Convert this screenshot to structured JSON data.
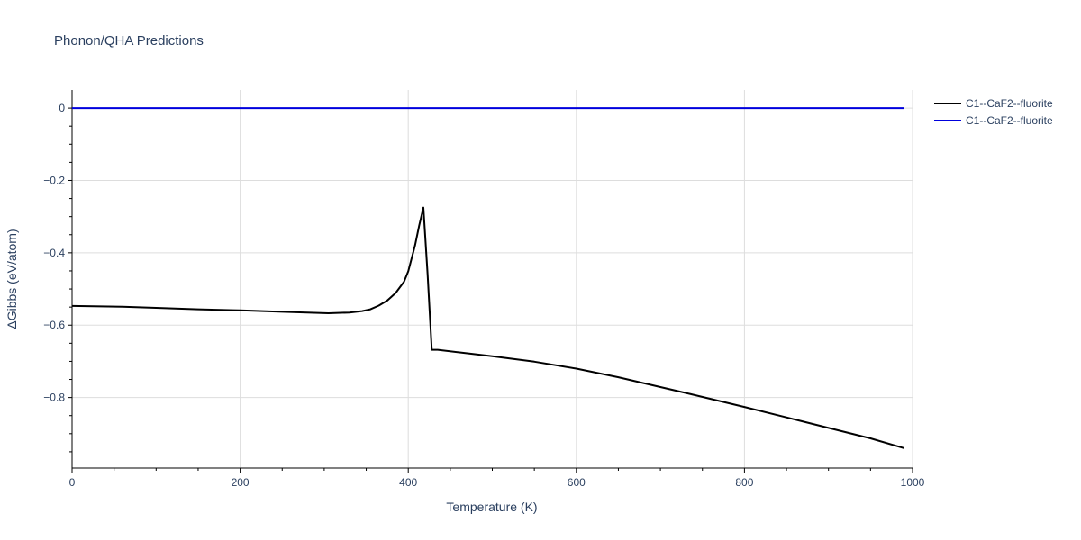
{
  "chart_data": {
    "type": "line",
    "title": "Phonon/QHA Predictions",
    "xlabel": "Temperature (K)",
    "ylabel": "ΔGibbs (eV/atom)",
    "xlim": [
      0,
      1000
    ],
    "ylim": [
      -0.995,
      0.05
    ],
    "x_ticks": [
      0,
      200,
      400,
      600,
      800,
      1000
    ],
    "x_tick_labels": [
      "0",
      "200",
      "400",
      "600",
      "800",
      "1000"
    ],
    "y_ticks": [
      0,
      -0.2,
      -0.4,
      -0.6,
      -0.8
    ],
    "y_tick_labels": [
      "0",
      "−0.2",
      "−0.4",
      "−0.6",
      "−0.8"
    ],
    "grid": true,
    "legend_position": "top-right",
    "series": [
      {
        "name": "C1--CaF2--fluorite",
        "color": "#000000",
        "x": [
          0,
          60,
          100,
          150,
          200,
          250,
          305,
          330,
          345,
          355,
          365,
          375,
          385,
          395,
          400,
          408,
          413,
          418,
          423,
          428,
          435,
          460,
          500,
          550,
          600,
          650,
          700,
          735,
          800,
          850,
          900,
          950,
          990
        ],
        "y": [
          -0.547,
          -0.549,
          -0.552,
          -0.556,
          -0.559,
          -0.563,
          -0.567,
          -0.565,
          -0.561,
          -0.556,
          -0.546,
          -0.532,
          -0.511,
          -0.48,
          -0.451,
          -0.38,
          -0.325,
          -0.275,
          -0.46,
          -0.668,
          -0.668,
          -0.675,
          -0.686,
          -0.701,
          -0.72,
          -0.744,
          -0.771,
          -0.79,
          -0.826,
          -0.855,
          -0.884,
          -0.913,
          -0.94
        ]
      },
      {
        "name": "C1--CaF2--fluorite",
        "color": "#0000dd",
        "x": [
          0,
          990
        ],
        "y": [
          0,
          0
        ]
      }
    ]
  }
}
